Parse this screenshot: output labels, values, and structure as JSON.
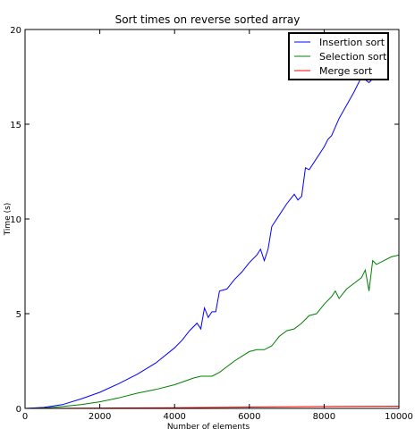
{
  "chart_data": {
    "type": "line",
    "title": "Sort times on reverse sorted array",
    "xlabel": "Number of elements",
    "ylabel": "Time (s)",
    "xlim": [
      0,
      10000
    ],
    "ylim": [
      0,
      20
    ],
    "xticks": [
      0,
      2000,
      4000,
      6000,
      8000,
      10000
    ],
    "yticks": [
      0,
      5,
      10,
      15,
      20
    ],
    "grid": false,
    "legend_position": "top-right",
    "series": [
      {
        "name": "Insertion sort",
        "color": "#0000ff",
        "x": [
          0,
          500,
          1000,
          1500,
          2000,
          2500,
          3000,
          3500,
          4000,
          4200,
          4400,
          4600,
          4700,
          4800,
          4900,
          5000,
          5100,
          5200,
          5400,
          5600,
          5800,
          6000,
          6200,
          6300,
          6400,
          6500,
          6600,
          6800,
          7000,
          7200,
          7300,
          7400,
          7500,
          7600,
          7800,
          8000,
          8100,
          8200,
          8400,
          8600,
          8800,
          9000,
          9200,
          9400
        ],
        "y": [
          0,
          0.05,
          0.2,
          0.5,
          0.85,
          1.3,
          1.8,
          2.4,
          3.2,
          3.6,
          4.1,
          4.5,
          4.2,
          5.3,
          4.8,
          5.1,
          5.1,
          6.2,
          6.3,
          6.8,
          7.2,
          7.7,
          8.1,
          8.4,
          7.8,
          8.4,
          9.6,
          10.2,
          10.8,
          11.3,
          11.0,
          11.2,
          12.7,
          12.6,
          13.2,
          13.8,
          14.2,
          14.4,
          15.3,
          16.0,
          16.7,
          17.5,
          17.2,
          17.6
        ]
      },
      {
        "name": "Selection sort",
        "color": "#008000",
        "x": [
          0,
          500,
          1000,
          1500,
          2000,
          2500,
          3000,
          3500,
          4000,
          4500,
          4700,
          5000,
          5200,
          5400,
          5600,
          5800,
          6000,
          6200,
          6400,
          6600,
          6800,
          7000,
          7200,
          7400,
          7600,
          7800,
          8000,
          8200,
          8300,
          8400,
          8600,
          8800,
          9000,
          9100,
          9200,
          9300,
          9400,
          9600,
          9800,
          10000
        ],
        "y": [
          0,
          0.02,
          0.1,
          0.2,
          0.35,
          0.55,
          0.8,
          1.0,
          1.25,
          1.6,
          1.7,
          1.7,
          1.9,
          2.2,
          2.5,
          2.75,
          3.0,
          3.1,
          3.1,
          3.3,
          3.8,
          4.1,
          4.2,
          4.5,
          4.9,
          5.0,
          5.5,
          5.9,
          6.2,
          5.8,
          6.3,
          6.6,
          6.9,
          7.3,
          6.2,
          7.8,
          7.6,
          7.8,
          8.0,
          8.1
        ]
      },
      {
        "name": "Merge sort",
        "color": "#ff0000",
        "x": [
          0,
          2000,
          4000,
          6000,
          8000,
          10000
        ],
        "y": [
          0,
          0.02,
          0.04,
          0.07,
          0.1,
          0.12
        ]
      }
    ]
  }
}
